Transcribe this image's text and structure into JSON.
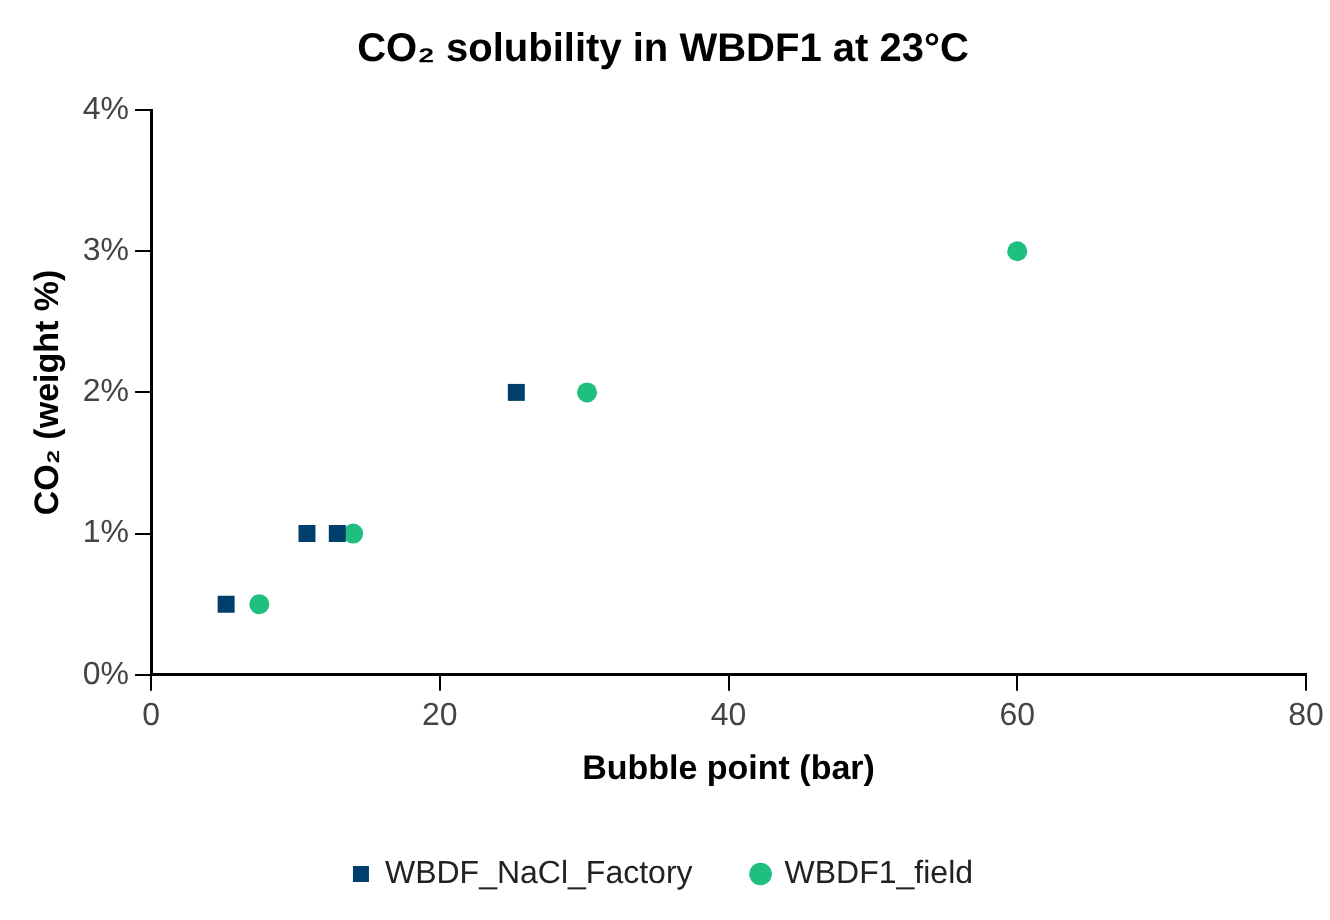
{
  "chart_data": {
    "type": "scatter",
    "title": "CO₂ solubility in WBDF1 at 23°C",
    "xlabel": "Bubble point (bar)",
    "ylabel": "CO₂ (weight %)",
    "xlim": [
      0,
      80
    ],
    "xticks": [
      0,
      20,
      40,
      60,
      80
    ],
    "ylim": [
      0,
      4
    ],
    "yticks": [
      {
        "value": 0,
        "label": "0%"
      },
      {
        "value": 1,
        "label": "1%"
      },
      {
        "value": 2,
        "label": "2%"
      },
      {
        "value": 3,
        "label": "3%"
      },
      {
        "value": 4,
        "label": "4%"
      }
    ],
    "grid": false,
    "legend": "bottom",
    "series": [
      {
        "name": "WBDF_NaCl_Factory",
        "color": "#003f6b",
        "marker": "square",
        "x": [
          5.2,
          10.8,
          12.9,
          25.3
        ],
        "values": [
          0.5,
          1,
          1,
          2
        ]
      },
      {
        "name": "WBDF1_field",
        "color": "#1fbf7f",
        "marker": "circle",
        "x": [
          7.5,
          14,
          30.2,
          60
        ],
        "values": [
          0.5,
          1,
          2,
          3
        ]
      }
    ]
  }
}
